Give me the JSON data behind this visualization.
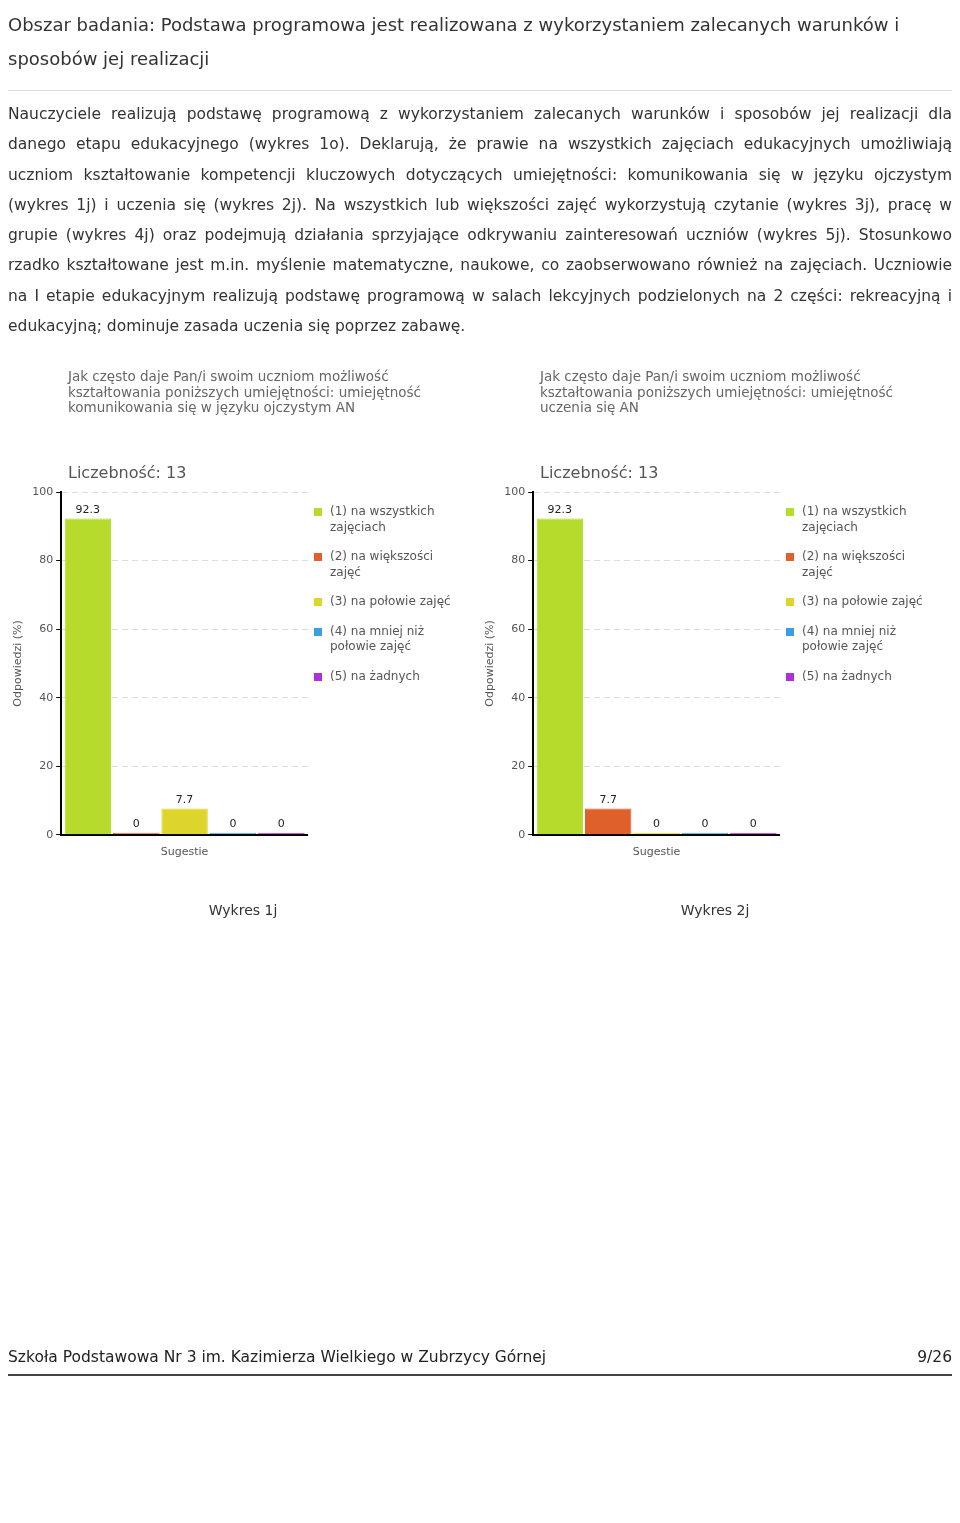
{
  "chart_data": [
    {
      "type": "bar",
      "title": "Jak często daje Pan/i swoim uczniom możliwość kształtowania poniższych umiejętności: umiejętność komunikowania się w języku ojczystym AN",
      "subtitle": "Liczebność: 13",
      "ylabel": "Odpowiedzi (%)",
      "categories": [
        "Sugestie"
      ],
      "series": [
        {
          "name": "(1) na wszystkich zajęciach",
          "color": "#b5dc2c",
          "values": [
            92.3
          ]
        },
        {
          "name": "(2) na większości zajęć",
          "color": "#e0602c",
          "values": [
            0
          ]
        },
        {
          "name": "(3) na połowie zajęć",
          "color": "#ded52c",
          "values": [
            7.7
          ]
        },
        {
          "name": "(4) na mniej niż połowie zajęć",
          "color": "#3a9ee0",
          "values": [
            0
          ]
        },
        {
          "name": "(5) na żadnych",
          "color": "#b030d8",
          "values": [
            0
          ]
        }
      ],
      "ylim": [
        0,
        100
      ],
      "yticks": [
        0,
        20,
        40,
        60,
        80,
        100
      ],
      "grid": "y",
      "legend": "right",
      "data_labels": true,
      "annotations": [
        "Obszar badania: Podstawa programowa jest realizowana z wykorzystaniem zalecanych warunków i sposobów jej realizacji",
        "Nauczyciele realizują podstawę programową z wykorzystaniem zalecanych warunków i sposobów jej realizacji dla danego etapu edukacyjnego (wykres 1o). Deklarują, że prawie na wszystkich zajęciach edukacyjnych umożliwiają uczniom kształtowanie kompetencji kluczowych dotyczących umiejętności: komunikowania się w języku ojczystym (wykres 1j) i uczenia się (wykres 2j). Na wszystkich lub większości zajęć wykorzystują czytanie (wykres 3j), pracę w grupie (wykres 4j) oraz podejmują działania sprzyjające odkrywaniu zainteresowań uczniów (wykres 5j). Stosunkowo rzadko kształtowane jest m.in. myślenie matematyczne, naukowe, co zaobserwowano również na zajęciach. Uczniowie na I etapie edukacyjnym realizują podstawę programową w salach lekcyjnych podzielonych na 2 części: rekreacyjną i edukacyjną; dominuje zasada uczenia się poprzez zabawę.",
        "Wykres 1j"
      ]
    },
    {
      "type": "bar",
      "title": "Jak często daje Pan/i swoim uczniom możliwość kształtowania poniższych umiejętności: umiejętność uczenia się AN",
      "subtitle": "Liczebność: 13",
      "ylabel": "Odpowiedzi (%)",
      "categories": [
        "Sugestie"
      ],
      "series": [
        {
          "name": "(1) na wszystkich zajęciach",
          "color": "#b5dc2c",
          "values": [
            92.3
          ]
        },
        {
          "name": "(2) na większości zajęć",
          "color": "#e0602c",
          "values": [
            7.7
          ]
        },
        {
          "name": "(3) na połowie zajęć",
          "color": "#ded52c",
          "values": [
            0
          ]
        },
        {
          "name": "(4) na mniej niż połowie zajęć",
          "color": "#3a9ee0",
          "values": [
            0
          ]
        },
        {
          "name": "(5) na żadnych",
          "color": "#b030d8",
          "values": [
            0
          ]
        }
      ],
      "ylim": [
        0,
        100
      ],
      "yticks": [
        0,
        20,
        40,
        60,
        80,
        100
      ],
      "grid": "y",
      "legend": "right",
      "data_labels": true,
      "annotations": [
        "Wykres 2j",
        "Szkoła Podstawowa Nr 3 im. Kazimierza Wielkiego w Zubrzycy Górnej",
        "9/26"
      ]
    }
  ]
}
